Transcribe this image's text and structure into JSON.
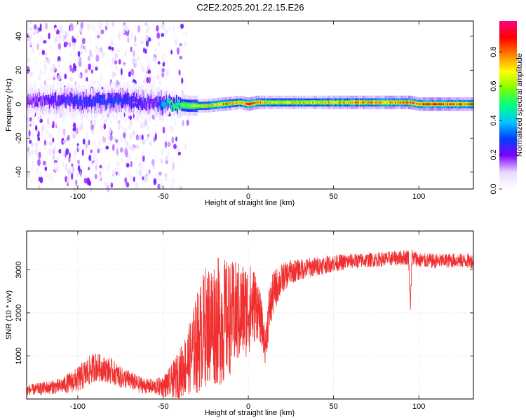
{
  "figure": {
    "title": "C2E2.2025.201.22.15.E26"
  },
  "chart_data": [
    {
      "type": "heatmap",
      "xlabel": "Height of straight line (km)",
      "ylabel": "Frequency (Hz)",
      "xlim": [
        -130,
        132
      ],
      "ylim": [
        -50,
        49
      ],
      "xticks": [
        -100,
        -50,
        0,
        50,
        100
      ],
      "yticks": [
        -40,
        -20,
        0,
        20,
        40
      ],
      "colorbar": {
        "label": "Normalized spectral amplitude",
        "range": [
          0,
          0.98
        ],
        "ticks": [
          0.0,
          0.2,
          0.4,
          0.6,
          0.8
        ],
        "colormap": [
          "#ffffff",
          "#e8d8ff",
          "#8000ff",
          "#0040ff",
          "#00c8ff",
          "#00ff80",
          "#80ff00",
          "#ffff00",
          "#ff8000",
          "#ff0000",
          "#ff0080"
        ]
      },
      "ridge_profile": {
        "x": [
          -130,
          -100,
          -75,
          -55,
          -45,
          -35,
          -25,
          -15,
          -5,
          0,
          5,
          10,
          20,
          30,
          40,
          50,
          60,
          70,
          80,
          90,
          95,
          100,
          105,
          110,
          120,
          132
        ],
        "center_hz": [
          2,
          2,
          2,
          1,
          0,
          -1,
          -1,
          0,
          1,
          0,
          1,
          1,
          1,
          1,
          1,
          1,
          1,
          1,
          1,
          1,
          1,
          0,
          0,
          0,
          0,
          0
        ],
        "peak_amplitude": [
          0.2,
          0.3,
          0.3,
          0.25,
          0.55,
          0.65,
          0.7,
          0.8,
          0.75,
          0.95,
          0.9,
          0.75,
          0.7,
          0.72,
          0.75,
          0.78,
          0.8,
          0.8,
          0.82,
          0.85,
          0.9,
          0.85,
          0.95,
          0.9,
          0.85,
          0.8
        ]
      }
    },
    {
      "type": "line",
      "xlabel": "Height of straight line (km)",
      "ylabel": "SNR (10 * v/v)",
      "xlim": [
        -130,
        132
      ],
      "ylim": [
        0,
        3900
      ],
      "xticks": [
        -100,
        -50,
        0,
        50,
        100
      ],
      "yticks": [
        1000,
        2000,
        3000
      ],
      "color": "#f03030",
      "series": [
        {
          "x": [
            -130,
            -120,
            -110,
            -100,
            -95,
            -90,
            -85,
            -80,
            -75,
            -70,
            -65,
            -60,
            -55,
            -50,
            -45,
            -40,
            -35,
            -30,
            -25,
            -20,
            -15,
            -10,
            -5,
            0,
            5,
            8,
            10,
            12,
            15,
            20,
            25,
            30,
            40,
            50,
            60,
            70,
            80,
            90,
            94,
            95,
            96,
            100,
            110,
            120,
            132
          ],
          "values": [
            200,
            250,
            300,
            450,
            600,
            750,
            700,
            650,
            500,
            450,
            350,
            300,
            280,
            300,
            400,
            600,
            900,
            1300,
            1700,
            1800,
            1800,
            1900,
            2000,
            2100,
            2200,
            1700,
            1200,
            2000,
            2500,
            2800,
            2950,
            3000,
            3080,
            3150,
            3200,
            3220,
            3250,
            3280,
            3300,
            2200,
            3300,
            3220,
            3200,
            3220,
            3200
          ],
          "amplitude": [
            120,
            150,
            180,
            300,
            350,
            350,
            300,
            300,
            250,
            220,
            200,
            180,
            180,
            250,
            400,
            600,
            800,
            1200,
            1400,
            1500,
            1500,
            1300,
            1200,
            1100,
            800,
            500,
            400,
            600,
            500,
            350,
            280,
            250,
            220,
            200,
            180,
            170,
            170,
            180,
            200,
            200,
            200,
            180,
            170,
            170,
            170
          ]
        }
      ]
    }
  ]
}
